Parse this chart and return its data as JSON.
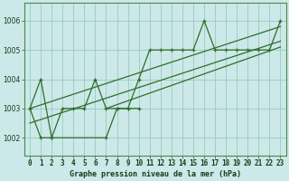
{
  "title": "Graphe pression niveau de la mer (hPa)",
  "bg_color": "#cce8e8",
  "grid_color": "#99ccbb",
  "line_color": "#2d6e2d",
  "spine_color": "#4a8a4a",
  "x_labels": [
    "0",
    "1",
    "2",
    "3",
    "4",
    "5",
    "6",
    "7",
    "8",
    "9",
    "10",
    "11",
    "12",
    "13",
    "14",
    "15",
    "16",
    "17",
    "18",
    "19",
    "20",
    "21",
    "22",
    "23"
  ],
  "ylim": [
    1001.4,
    1006.6
  ],
  "yticks": [
    1002,
    1003,
    1004,
    1005,
    1006
  ],
  "series1": [
    1003,
    1004,
    1002,
    1003,
    1003,
    1003,
    1004,
    1003,
    1003,
    1003,
    1004,
    1005,
    1005,
    1005,
    1005,
    1005,
    1006,
    1005,
    1005,
    1005,
    1005,
    1005,
    1005,
    1006
  ],
  "series2_x": [
    0,
    1,
    2,
    7,
    8,
    9,
    10
  ],
  "series2_y": [
    1003,
    1002,
    1002,
    1002,
    1003,
    1003,
    1003
  ],
  "trend1": [
    0,
    1003.0,
    23,
    1005.8
  ],
  "trend2": [
    0,
    1002.5,
    23,
    1005.3
  ],
  "trend3": [
    7,
    1003.0,
    23,
    1005.1
  ],
  "label_fontsize": 6.0,
  "tick_fontsize": 5.5,
  "ylabel_fontsize": 5.5
}
